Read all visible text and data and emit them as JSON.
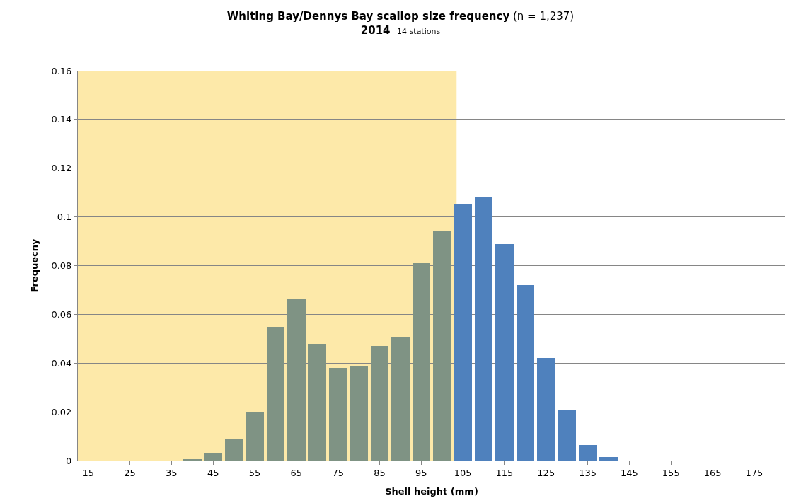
{
  "chart_data": {
    "type": "bar",
    "title": "Whiting Bay/Dennys Bay scallop size frequency (n = 1,237)",
    "subtitle": "2014 14 stations",
    "xlabel": "Shell height (mm)",
    "ylabel": "Frequecny",
    "x": [
      15,
      20,
      25,
      30,
      35,
      40,
      45,
      50,
      55,
      60,
      65,
      70,
      75,
      80,
      85,
      90,
      95,
      100,
      105,
      110,
      115,
      120,
      125,
      130,
      135,
      140,
      145,
      150,
      155,
      160,
      165,
      170,
      175,
      180
    ],
    "values": [
      0,
      0,
      0,
      0,
      0,
      0.0007,
      0.003,
      0.009,
      0.02,
      0.055,
      0.0665,
      0.048,
      0.038,
      0.039,
      0.047,
      0.0505,
      0.081,
      0.0945,
      0.105,
      0.108,
      0.089,
      0.072,
      0.042,
      0.021,
      0.0065,
      0.0015,
      0,
      0,
      0,
      0,
      0,
      0,
      0,
      0
    ],
    "colors": [
      "#7f9384",
      "#7f9384",
      "#7f9384",
      "#7f9384",
      "#7f9384",
      "#7f9384",
      "#7f9384",
      "#7f9384",
      "#7f9384",
      "#7f9384",
      "#7f9384",
      "#7f9384",
      "#7f9384",
      "#7f9384",
      "#7f9384",
      "#7f9384",
      "#7f9384",
      "#7f9384",
      "#4f81bd",
      "#4f81bd",
      "#4f81bd",
      "#4f81bd",
      "#4f81bd",
      "#4f81bd",
      "#4f81bd",
      "#4f81bd",
      "#4f81bd",
      "#4f81bd",
      "#4f81bd",
      "#4f81bd",
      "#4f81bd",
      "#4f81bd",
      "#4f81bd",
      "#4f81bd"
    ],
    "xlim": [
      12.5,
      182.5
    ],
    "xticks": [
      15,
      25,
      35,
      45,
      55,
      65,
      75,
      85,
      95,
      105,
      115,
      125,
      135,
      145,
      155,
      165,
      175
    ],
    "ylim": [
      0,
      0.16
    ],
    "yticks": [
      0,
      0.02,
      0.04,
      0.06,
      0.08,
      0.1,
      0.12,
      0.14,
      0.16
    ],
    "grid": "y",
    "legend": false,
    "bands": [
      {
        "axis": "x",
        "from": 12.5,
        "to": 103.5,
        "color": "#fde9a9"
      }
    ]
  }
}
